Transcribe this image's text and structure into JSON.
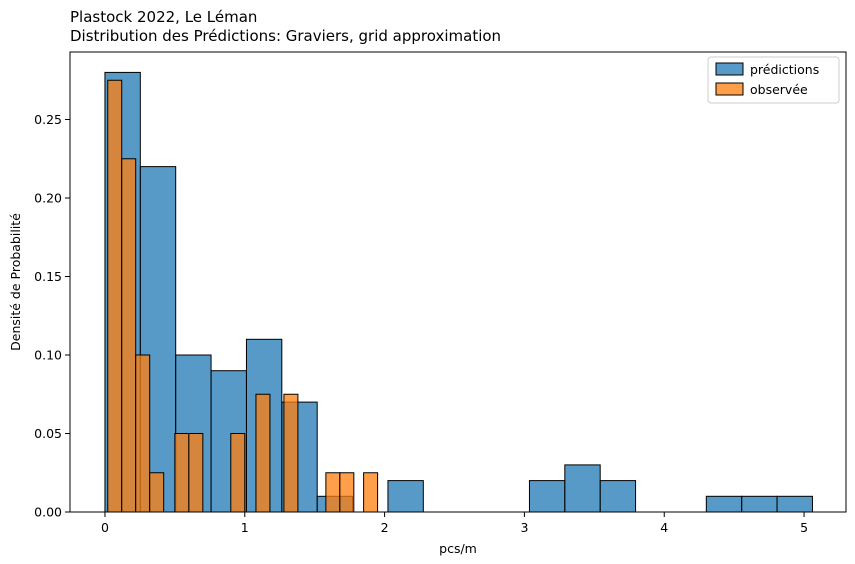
{
  "chart_data": {
    "type": "bar",
    "title_lines": [
      "Plastock 2022, Le Léman",
      "Distribution des Prédictions: Graviers, grid approximation"
    ],
    "xlabel": "pcs/m",
    "ylabel": "Densité de Probabilité",
    "xlim": [
      -0.25,
      5.3
    ],
    "ylim": [
      0,
      0.293
    ],
    "xticks": [
      0,
      1,
      2,
      3,
      4,
      5
    ],
    "xtick_labels": [
      "0",
      "1",
      "2",
      "3",
      "4",
      "5"
    ],
    "yticks": [
      0.0,
      0.05,
      0.1,
      0.15,
      0.2,
      0.25
    ],
    "ytick_labels": [
      "0.00",
      "0.05",
      "0.10",
      "0.15",
      "0.20",
      "0.25"
    ],
    "grid": false,
    "legend_position": "top-right",
    "series": [
      {
        "name": "prédictions",
        "color": "#1f77b4",
        "bins": [
          {
            "x0": 0.0,
            "x1": 0.253,
            "y": 0.28
          },
          {
            "x0": 0.253,
            "x1": 0.506,
            "y": 0.22
          },
          {
            "x0": 0.506,
            "x1": 0.759,
            "y": 0.1
          },
          {
            "x0": 0.759,
            "x1": 1.012,
            "y": 0.09
          },
          {
            "x0": 1.012,
            "x1": 1.265,
            "y": 0.11
          },
          {
            "x0": 1.265,
            "x1": 1.518,
            "y": 0.07
          },
          {
            "x0": 1.518,
            "x1": 1.771,
            "y": 0.01
          },
          {
            "x0": 2.024,
            "x1": 2.277,
            "y": 0.02
          },
          {
            "x0": 3.036,
            "x1": 3.289,
            "y": 0.02
          },
          {
            "x0": 3.289,
            "x1": 3.542,
            "y": 0.03
          },
          {
            "x0": 3.542,
            "x1": 3.795,
            "y": 0.02
          },
          {
            "x0": 4.301,
            "x1": 4.554,
            "y": 0.01
          },
          {
            "x0": 4.554,
            "x1": 4.807,
            "y": 0.01
          },
          {
            "x0": 4.807,
            "x1": 5.06,
            "y": 0.01
          }
        ]
      },
      {
        "name": "observée",
        "color": "#ff7f0e",
        "bins": [
          {
            "x0": 0.02,
            "x1": 0.12,
            "y": 0.275
          },
          {
            "x0": 0.12,
            "x1": 0.22,
            "y": 0.225
          },
          {
            "x0": 0.22,
            "x1": 0.32,
            "y": 0.1
          },
          {
            "x0": 0.32,
            "x1": 0.42,
            "y": 0.025
          },
          {
            "x0": 0.5,
            "x1": 0.6,
            "y": 0.05
          },
          {
            "x0": 0.6,
            "x1": 0.7,
            "y": 0.05
          },
          {
            "x0": 0.9,
            "x1": 1.0,
            "y": 0.05
          },
          {
            "x0": 1.08,
            "x1": 1.18,
            "y": 0.075
          },
          {
            "x0": 1.28,
            "x1": 1.38,
            "y": 0.075
          },
          {
            "x0": 1.58,
            "x1": 1.68,
            "y": 0.025
          },
          {
            "x0": 1.68,
            "x1": 1.78,
            "y": 0.025
          },
          {
            "x0": 1.85,
            "x1": 1.95,
            "y": 0.025
          }
        ]
      }
    ]
  }
}
